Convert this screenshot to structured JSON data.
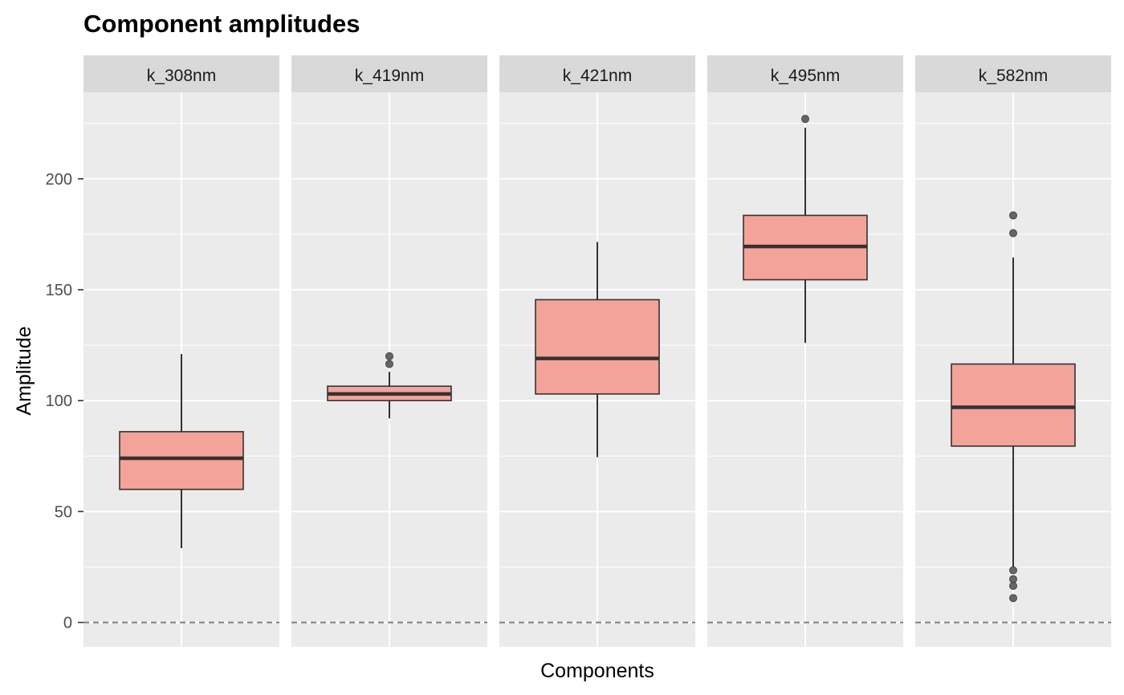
{
  "chart_data": {
    "type": "boxplot",
    "title": "Component amplitudes",
    "xlabel": "Components",
    "ylabel": "Amplitude",
    "ylim": [
      -11,
      239
    ],
    "yticks": [
      0,
      50,
      100,
      150,
      200
    ],
    "reference_line": 0,
    "colors": {
      "box_fill": "#f4a39b",
      "panel_bg": "#ebebeb",
      "strip_bg": "#d9d9d9",
      "grid": "#ffffff",
      "box_line": "#333333",
      "outlier": "#666666",
      "ref_line": "#7f7f7f"
    },
    "facets": [
      {
        "label": "k_308nm",
        "whisker_low": 33.5,
        "q1": 60,
        "median": 74,
        "q3": 86,
        "whisker_high": 121,
        "outliers": []
      },
      {
        "label": "k_419nm",
        "whisker_low": 92,
        "q1": 100,
        "median": 103,
        "q3": 106.5,
        "whisker_high": 113,
        "outliers": [
          120,
          116.5
        ]
      },
      {
        "label": "k_421nm",
        "whisker_low": 74.5,
        "q1": 103,
        "median": 119,
        "q3": 145.5,
        "whisker_high": 171.5,
        "outliers": []
      },
      {
        "label": "k_495nm",
        "whisker_low": 126,
        "q1": 154.5,
        "median": 169.5,
        "q3": 183.5,
        "whisker_high": 223,
        "outliers": [
          227
        ]
      },
      {
        "label": "k_582nm",
        "whisker_low": 24,
        "q1": 79.5,
        "median": 97,
        "q3": 116.5,
        "whisker_high": 164.5,
        "outliers": [
          183.5,
          175.5,
          23.5,
          19.5,
          16.5,
          11
        ]
      }
    ]
  }
}
